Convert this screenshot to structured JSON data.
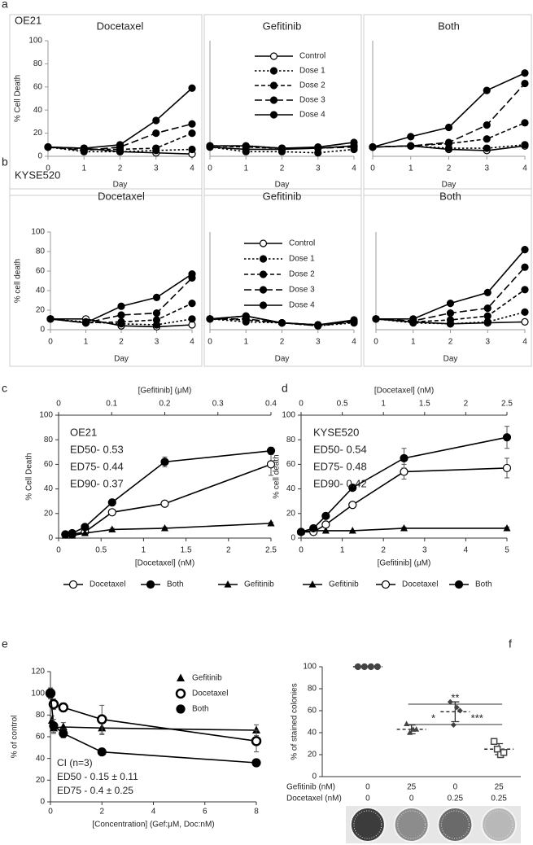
{
  "chart_data": [
    {
      "type": "line",
      "panel": "a",
      "cell_line": "OE21",
      "title": "Docetaxel",
      "ylabel": "% Cell Death",
      "xlabel": "Day",
      "x": [
        0,
        1,
        2,
        3,
        4
      ],
      "xlim": [
        0,
        4
      ],
      "xticks": [
        0,
        1,
        2,
        3,
        4
      ],
      "ylim": [
        0,
        100
      ],
      "yticks": [
        0,
        20,
        40,
        60,
        80,
        100
      ],
      "series": [
        {
          "color": "#000",
          "marker": "open-circle",
          "dash": "solid",
          "values": [
            8,
            7,
            4,
            3,
            2
          ]
        },
        {
          "color": "#000",
          "marker": "circle",
          "dash": "dot",
          "values": [
            8,
            4,
            4,
            5,
            6
          ]
        },
        {
          "color": "#000",
          "marker": "circle",
          "dash": "dash",
          "values": [
            8,
            6,
            6,
            7,
            20
          ]
        },
        {
          "color": "#000",
          "marker": "circle",
          "dash": "longdash",
          "values": [
            8,
            5,
            8,
            20,
            28
          ]
        },
        {
          "color": "#000",
          "marker": "circle",
          "dash": "solid",
          "values": [
            8,
            7,
            10,
            31,
            59
          ]
        }
      ]
    },
    {
      "type": "line",
      "title": "Gefitinib",
      "xlabel": "Day",
      "legend": "upper-center",
      "x": [
        0,
        1,
        2,
        3,
        4
      ],
      "xlim": [
        0,
        4
      ],
      "xticks": [
        0,
        1,
        2,
        3,
        4
      ],
      "ylim": [
        0,
        100
      ],
      "series": [
        {
          "name": "Control",
          "color": "#000",
          "marker": "open-circle",
          "dash": "solid",
          "values": [
            8,
            6,
            6,
            7,
            9
          ]
        },
        {
          "name": "Dose 1",
          "color": "#000",
          "marker": "circle",
          "dash": "dot",
          "values": [
            8,
            4,
            4,
            3,
            6
          ]
        },
        {
          "name": "Dose 2",
          "color": "#000",
          "marker": "circle",
          "dash": "dash",
          "values": [
            9,
            8,
            7,
            7,
            9
          ]
        },
        {
          "name": "Dose 3",
          "color": "#000",
          "marker": "circle",
          "dash": "longdash",
          "values": [
            9,
            9,
            7,
            7,
            8
          ]
        },
        {
          "name": "Dose 4",
          "color": "#000",
          "marker": "circle",
          "dash": "solid",
          "values": [
            9,
            9,
            7,
            8,
            12
          ]
        }
      ]
    },
    {
      "type": "line",
      "title": "Both",
      "xlabel": "Day",
      "x": [
        0,
        1,
        2,
        3,
        4
      ],
      "xlim": [
        0,
        4
      ],
      "xticks": [
        0,
        1,
        2,
        3,
        4
      ],
      "ylim": [
        0,
        100
      ],
      "series": [
        {
          "color": "#000",
          "marker": "open-circle",
          "dash": "solid",
          "values": [
            8,
            9,
            6,
            5,
            9
          ]
        },
        {
          "color": "#000",
          "marker": "circle",
          "dash": "dot",
          "values": [
            8,
            9,
            7,
            7,
            10
          ]
        },
        {
          "color": "#000",
          "marker": "circle",
          "dash": "dash",
          "values": [
            8,
            9,
            11,
            15,
            29
          ]
        },
        {
          "color": "#000",
          "marker": "circle",
          "dash": "longdash",
          "values": [
            8,
            9,
            12,
            27,
            63
          ]
        },
        {
          "color": "#000",
          "marker": "circle",
          "dash": "solid",
          "values": [
            8,
            17,
            25,
            57,
            72
          ]
        }
      ]
    },
    {
      "type": "line",
      "panel": "b",
      "cell_line": "KYSE520",
      "title": "Docetaxel",
      "ylabel": "% cell death",
      "xlabel": "Day",
      "x": [
        0,
        1,
        2,
        3,
        4
      ],
      "xlim": [
        0,
        4
      ],
      "xticks": [
        0,
        1,
        2,
        3,
        4
      ],
      "ylim": [
        0,
        100
      ],
      "yticks": [
        0,
        20,
        40,
        60,
        80,
        100
      ],
      "series": [
        {
          "color": "#000",
          "marker": "open-circle",
          "dash": "solid",
          "values": [
            11,
            11,
            4,
            3,
            5
          ]
        },
        {
          "color": "#000",
          "marker": "circle",
          "dash": "dot",
          "values": [
            11,
            8,
            6,
            5,
            11
          ]
        },
        {
          "color": "#000",
          "marker": "circle",
          "dash": "dash",
          "values": [
            11,
            7,
            8,
            10,
            27
          ]
        },
        {
          "color": "#000",
          "marker": "circle",
          "dash": "longdash",
          "values": [
            11,
            7,
            15,
            17,
            53
          ]
        },
        {
          "color": "#000",
          "marker": "circle",
          "dash": "solid",
          "values": [
            11,
            7,
            24,
            33,
            57
          ]
        }
      ]
    },
    {
      "type": "line",
      "title": "Gefitinib",
      "xlabel": "Day",
      "legend": "upper-center",
      "x": [
        0,
        1,
        2,
        3,
        4
      ],
      "xlim": [
        0,
        4
      ],
      "xticks": [
        0,
        1,
        2,
        3,
        4
      ],
      "ylim": [
        0,
        100
      ],
      "series": [
        {
          "name": "Control",
          "color": "#000",
          "marker": "open-circle",
          "dash": "solid",
          "values": [
            11,
            14,
            7,
            5,
            9
          ]
        },
        {
          "name": "Dose 1",
          "color": "#000",
          "marker": "circle",
          "dash": "dot",
          "values": [
            11,
            8,
            7,
            4,
            7
          ]
        },
        {
          "name": "Dose 2",
          "color": "#000",
          "marker": "circle",
          "dash": "dash",
          "values": [
            11,
            10,
            7,
            5,
            8
          ]
        },
        {
          "name": "Dose 3",
          "color": "#000",
          "marker": "circle",
          "dash": "longdash",
          "values": [
            11,
            11,
            7,
            4,
            8
          ]
        },
        {
          "name": "Dose 4",
          "color": "#000",
          "marker": "circle",
          "dash": "solid",
          "values": [
            11,
            14,
            7,
            5,
            10
          ]
        }
      ]
    },
    {
      "type": "line",
      "title": "Both",
      "xlabel": "Day",
      "x": [
        0,
        1,
        2,
        3,
        4
      ],
      "xlim": [
        0,
        4
      ],
      "xticks": [
        0,
        1,
        2,
        3,
        4
      ],
      "ylim": [
        0,
        100
      ],
      "series": [
        {
          "color": "#000",
          "marker": "open-circle",
          "dash": "solid",
          "values": [
            11,
            8,
            6,
            7,
            8
          ]
        },
        {
          "color": "#000",
          "marker": "circle",
          "dash": "dot",
          "values": [
            11,
            7,
            6,
            8,
            18
          ]
        },
        {
          "color": "#000",
          "marker": "circle",
          "dash": "dash",
          "values": [
            11,
            8,
            10,
            14,
            41
          ]
        },
        {
          "color": "#000",
          "marker": "circle",
          "dash": "longdash",
          "values": [
            11,
            9,
            17,
            22,
            64
          ]
        },
        {
          "color": "#000",
          "marker": "circle",
          "dash": "solid",
          "values": [
            11,
            11,
            27,
            38,
            82
          ]
        }
      ]
    },
    {
      "type": "line",
      "panel": "c",
      "ylabel": "% Cell Death",
      "xlabel": "[Docetaxel] (nM)",
      "x2label": "[Gefitinib] (μM)",
      "annotations": [
        "OE21",
        "ED50- 0.53",
        "ED75- 0.44",
        "ED90- 0.37"
      ],
      "legend": "bottom",
      "x": [
        0.08,
        0.16,
        0.31,
        0.63,
        1.25,
        2.5
      ],
      "xlim": [
        0,
        2.5
      ],
      "xticks": [
        0,
        0.5,
        1,
        1.5,
        2,
        2.5
      ],
      "x2lim": [
        0,
        0.4
      ],
      "x2ticks": [
        0,
        0.1,
        0.2,
        0.3,
        0.4
      ],
      "ylim": [
        0,
        100
      ],
      "yticks": [
        0,
        20,
        40,
        60,
        80,
        100
      ],
      "series": [
        {
          "name": "Docetaxel",
          "color": "#000",
          "marker": "open-circle",
          "dash": "solid",
          "values": [
            3,
            3,
            5,
            21,
            28,
            60
          ],
          "errors": [
            0,
            0,
            1,
            2,
            1,
            9
          ]
        },
        {
          "name": "Both",
          "color": "#000",
          "marker": "circle",
          "dash": "solid",
          "values": [
            3,
            4,
            9,
            29,
            62,
            71
          ],
          "errors": [
            0,
            0,
            1,
            1,
            4,
            3
          ]
        },
        {
          "name": "Gefitinib",
          "color": "#000",
          "marker": "triangle",
          "dash": "solid",
          "values": [
            2,
            2,
            4,
            7,
            8,
            12
          ],
          "errors": [
            0,
            0,
            0,
            1,
            1,
            1
          ]
        }
      ]
    },
    {
      "type": "line",
      "panel": "d",
      "ylabel": "% cell death",
      "xlabel": "[Gefitinib] (μM)",
      "x2label": "[Docetaxel] (nM)",
      "annotations": [
        "KYSE520",
        "ED50- 0.54",
        "ED75- 0.48",
        "ED90- 0.42"
      ],
      "legend": "bottom",
      "x": [
        0,
        0.3,
        0.6,
        1.25,
        2.5,
        5
      ],
      "xlim": [
        0,
        5
      ],
      "xticks": [
        0,
        1,
        2,
        3,
        4,
        5
      ],
      "x2lim": [
        0,
        2.5
      ],
      "x2ticks": [
        0,
        0.5,
        1,
        1.5,
        2,
        2.5
      ],
      "ylim": [
        0,
        100
      ],
      "yticks": [
        0,
        20,
        40,
        60,
        80,
        100
      ],
      "series": [
        {
          "name": "Gefitinib",
          "color": "#000",
          "marker": "triangle",
          "dash": "solid",
          "values": [
            5,
            6,
            6,
            6,
            8,
            8
          ],
          "errors": [
            0,
            0,
            0,
            0,
            1,
            1
          ]
        },
        {
          "name": "Docetaxel",
          "color": "#000",
          "marker": "open-circle",
          "dash": "solid",
          "values": [
            5,
            5,
            11,
            27,
            54,
            57
          ],
          "errors": [
            0,
            0,
            1,
            1,
            6,
            8
          ]
        },
        {
          "name": "Both",
          "color": "#000",
          "marker": "circle",
          "dash": "solid",
          "values": [
            5,
            8,
            18,
            41,
            65,
            82
          ],
          "errors": [
            0,
            0,
            1,
            1,
            8,
            9
          ]
        }
      ]
    },
    {
      "type": "line",
      "panel": "e",
      "ylabel": "% of control",
      "xlabel": "[Concentration] (Gef:μM, Doc:nM)",
      "annotations": [
        "CI (n=3)",
        "ED50 - 0.15 ± 0.11",
        "ED75 - 0.4 ± 0.25"
      ],
      "legend": "upper-right",
      "xlim": [
        0,
        8
      ],
      "xticks": [
        0,
        2,
        4,
        6,
        8
      ],
      "ylim": [
        0,
        120
      ],
      "yticks": [
        0,
        20,
        40,
        60,
        80,
        100,
        120
      ],
      "series": [
        {
          "name": "Gefitinib",
          "color": "#000",
          "marker": "triangle",
          "dash": "solid",
          "x": [
            0.06,
            0.125,
            0.5,
            2,
            8
          ],
          "values": [
            75,
            68,
            69,
            68,
            66
          ],
          "errors": [
            4,
            5,
            4,
            6,
            5
          ]
        },
        {
          "name": "Docetaxel",
          "color": "#000",
          "marker": "open-circle-thick",
          "dash": "solid",
          "x": [
            0,
            0.125,
            0.5,
            2,
            8
          ],
          "values": [
            100,
            90,
            87,
            76,
            56
          ],
          "errors": [
            4,
            5,
            4,
            13,
            10
          ]
        },
        {
          "name": "Both",
          "color": "#000",
          "marker": "circle",
          "dash": "solid",
          "x": [
            0,
            0.125,
            0.5,
            2,
            8
          ],
          "values": [
            100,
            70,
            63,
            46,
            36
          ],
          "errors": [
            5,
            6,
            4,
            3,
            2
          ]
        }
      ]
    },
    {
      "type": "dot",
      "panel": "f",
      "ylabel": "% of stained colonies",
      "ylim": [
        0,
        100
      ],
      "yticks": [
        0,
        20,
        40,
        60,
        80,
        100
      ],
      "groups": [
        {
          "marker": "circle",
          "values": [
            100,
            100,
            100,
            100
          ],
          "mean": 100,
          "sd": 0
        },
        {
          "marker": "triangle",
          "values": [
            48,
            40,
            43,
            43
          ],
          "mean": 43,
          "sd": 4
        },
        {
          "marker": "diamond",
          "values": [
            68,
            47,
            63,
            60
          ],
          "mean": 59,
          "sd": 9
        },
        {
          "marker": "open-square",
          "values": [
            32,
            25,
            20,
            22
          ],
          "mean": 25,
          "sd": 5
        }
      ],
      "factors": [
        {
          "label": "Gefitinib (nM)",
          "values": [
            0,
            25,
            0,
            25
          ]
        },
        {
          "label": "Docetaxel (nM)",
          "values": [
            0,
            0,
            0.25,
            0.25
          ]
        }
      ],
      "comparisons": [
        {
          "groups": [
            1,
            3
          ],
          "label": "**"
        },
        {
          "groups": [
            1,
            2
          ],
          "label": "*"
        },
        {
          "groups": [
            2,
            3
          ],
          "label": "***"
        }
      ]
    }
  ]
}
